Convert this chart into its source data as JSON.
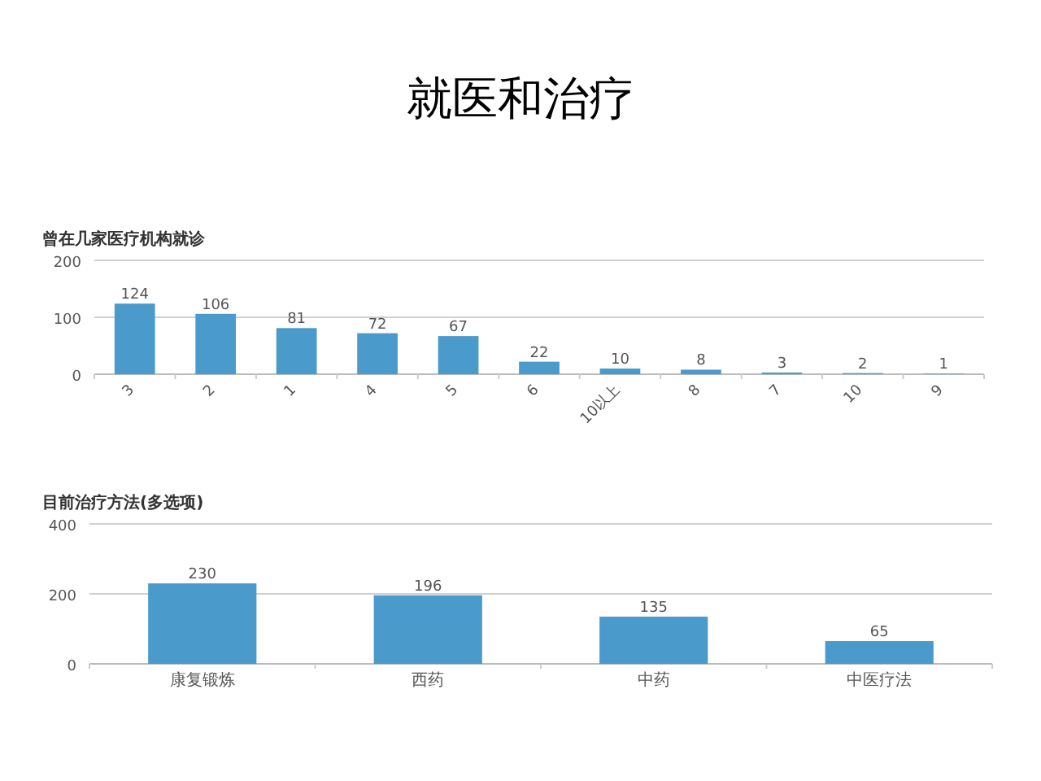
{
  "chart_data": [
    {
      "type": "bar",
      "title": "就医和治疗",
      "subtitle": "曾在几家医疗机构就诊",
      "categories": [
        "3",
        "2",
        "1",
        "4",
        "5",
        "6",
        "10以上",
        "8",
        "7",
        "10",
        "9"
      ],
      "values": [
        124,
        106,
        81,
        72,
        67,
        22,
        10,
        8,
        3,
        2,
        1
      ],
      "color": "#4a9acb",
      "ylim": [
        0,
        200
      ],
      "yticks": [
        0,
        100,
        200
      ],
      "grid": "y",
      "data_labels": true
    },
    {
      "type": "bar",
      "subtitle": "目前治疗方法(多选项)",
      "categories": [
        "康复锻炼",
        "西药",
        "中药",
        "中医疗法"
      ],
      "values": [
        230,
        196,
        135,
        65
      ],
      "color": "#4a9acb",
      "ylim": [
        0,
        400
      ],
      "yticks": [
        0,
        200,
        400
      ],
      "grid": "y",
      "data_labels": true
    }
  ]
}
